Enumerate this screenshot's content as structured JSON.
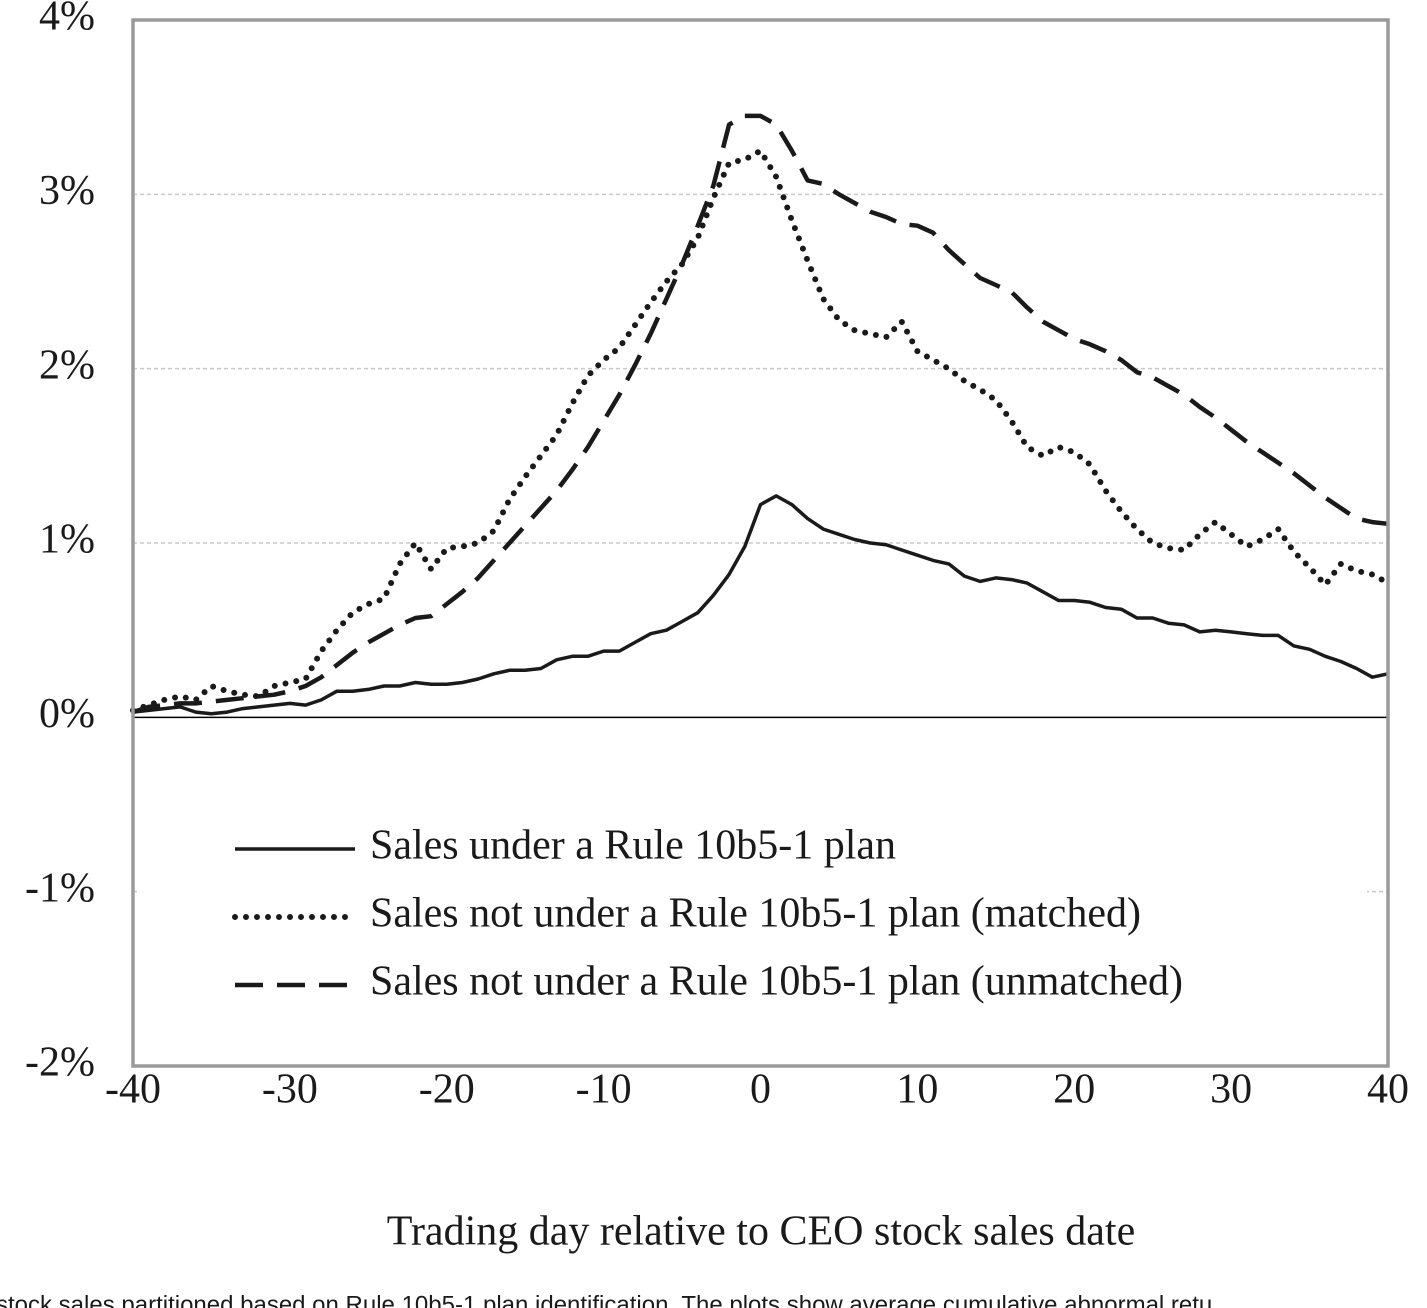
{
  "chart_data": {
    "type": "line",
    "xlabel": "Trading day relative to CEO stock sales date",
    "caption": "stock sales partitioned based on Rule 10b5-1 plan identification. The plots show average cumulative abnormal retu",
    "x": [
      -40,
      -39,
      -38,
      -37,
      -36,
      -35,
      -34,
      -33,
      -32,
      -31,
      -30,
      -29,
      -28,
      -27,
      -26,
      -25,
      -24,
      -23,
      -22,
      -21,
      -20,
      -19,
      -18,
      -17,
      -16,
      -15,
      -14,
      -13,
      -12,
      -11,
      -10,
      -9,
      -8,
      -7,
      -6,
      -5,
      -4,
      -3,
      -2,
      -1,
      0,
      1,
      2,
      3,
      4,
      5,
      6,
      7,
      8,
      9,
      10,
      11,
      12,
      13,
      14,
      15,
      16,
      17,
      18,
      19,
      20,
      21,
      22,
      23,
      24,
      25,
      26,
      27,
      28,
      29,
      30,
      31,
      32,
      33,
      34,
      35,
      36,
      37,
      38,
      39,
      40
    ],
    "series": [
      {
        "name": "Sales under a Rule 10b5-1 plan",
        "color": "#1a1a1a",
        "dash": "solid",
        "values": [
          0.03,
          0.04,
          0.05,
          0.06,
          0.03,
          0.02,
          0.03,
          0.05,
          0.06,
          0.07,
          0.08,
          0.07,
          0.1,
          0.15,
          0.15,
          0.16,
          0.18,
          0.18,
          0.2,
          0.19,
          0.19,
          0.2,
          0.22,
          0.25,
          0.27,
          0.27,
          0.28,
          0.33,
          0.35,
          0.35,
          0.38,
          0.38,
          0.43,
          0.48,
          0.5,
          0.55,
          0.6,
          0.7,
          0.82,
          0.98,
          1.22,
          1.27,
          1.22,
          1.14,
          1.08,
          1.05,
          1.02,
          1.0,
          0.99,
          0.96,
          0.93,
          0.9,
          0.88,
          0.81,
          0.78,
          0.8,
          0.79,
          0.77,
          0.72,
          0.67,
          0.67,
          0.66,
          0.63,
          0.62,
          0.57,
          0.57,
          0.54,
          0.53,
          0.49,
          0.5,
          0.49,
          0.48,
          0.47,
          0.47,
          0.41,
          0.39,
          0.35,
          0.32,
          0.28,
          0.23,
          0.25
        ]
      },
      {
        "name": "Sales not under a Rule 10b5-1 plan (matched)",
        "color": "#1a1a1a",
        "dash": "dotted",
        "values": [
          0.04,
          0.07,
          0.1,
          0.12,
          0.1,
          0.18,
          0.15,
          0.13,
          0.12,
          0.18,
          0.2,
          0.22,
          0.38,
          0.5,
          0.6,
          0.65,
          0.68,
          0.88,
          1.0,
          0.85,
          0.97,
          0.98,
          1.0,
          1.07,
          1.25,
          1.38,
          1.5,
          1.62,
          1.8,
          1.96,
          2.05,
          2.12,
          2.25,
          2.38,
          2.5,
          2.6,
          2.75,
          2.98,
          3.18,
          3.2,
          3.25,
          3.1,
          2.85,
          2.62,
          2.4,
          2.28,
          2.22,
          2.2,
          2.18,
          2.27,
          2.1,
          2.05,
          2.0,
          1.93,
          1.88,
          1.82,
          1.7,
          1.55,
          1.5,
          1.55,
          1.52,
          1.45,
          1.3,
          1.18,
          1.08,
          1.0,
          0.97,
          0.96,
          1.05,
          1.12,
          1.05,
          0.98,
          1.02,
          1.08,
          0.95,
          0.86,
          0.76,
          0.88,
          0.84,
          0.82,
          0.77
        ]
      },
      {
        "name": "Sales not under a Rule 10b5-1 plan (unmatched)",
        "color": "#1a1a1a",
        "dash": "dashed",
        "values": [
          0.03,
          0.06,
          0.07,
          0.08,
          0.08,
          0.09,
          0.1,
          0.11,
          0.12,
          0.13,
          0.15,
          0.18,
          0.23,
          0.3,
          0.37,
          0.43,
          0.48,
          0.53,
          0.57,
          0.58,
          0.65,
          0.72,
          0.8,
          0.9,
          1.0,
          1.1,
          1.2,
          1.3,
          1.42,
          1.55,
          1.7,
          1.85,
          2.02,
          2.2,
          2.4,
          2.6,
          2.82,
          3.05,
          3.4,
          3.45,
          3.45,
          3.4,
          3.25,
          3.08,
          3.06,
          3.0,
          2.95,
          2.9,
          2.87,
          2.83,
          2.82,
          2.78,
          2.68,
          2.6,
          2.52,
          2.48,
          2.44,
          2.35,
          2.27,
          2.22,
          2.17,
          2.14,
          2.1,
          2.05,
          1.98,
          1.95,
          1.9,
          1.85,
          1.78,
          1.72,
          1.65,
          1.58,
          1.52,
          1.46,
          1.4,
          1.33,
          1.26,
          1.2,
          1.14,
          1.12,
          1.11
        ]
      }
    ],
    "xlim": [
      -40,
      40
    ],
    "xticks": [
      -40,
      -30,
      -20,
      -10,
      0,
      10,
      20,
      30,
      40
    ],
    "ylim": [
      -2,
      4
    ],
    "yticks": [
      {
        "value": -2,
        "label": "-2%"
      },
      {
        "value": -1,
        "label": "-1%"
      },
      {
        "value": 0,
        "label": "0%"
      },
      {
        "value": 1,
        "label": "1%"
      },
      {
        "value": 2,
        "label": "2%"
      },
      {
        "value": 3,
        "label": "3%"
      },
      {
        "value": 4,
        "label": "4%"
      }
    ],
    "grid": true,
    "zero_line": true,
    "legend": "lower center"
  }
}
